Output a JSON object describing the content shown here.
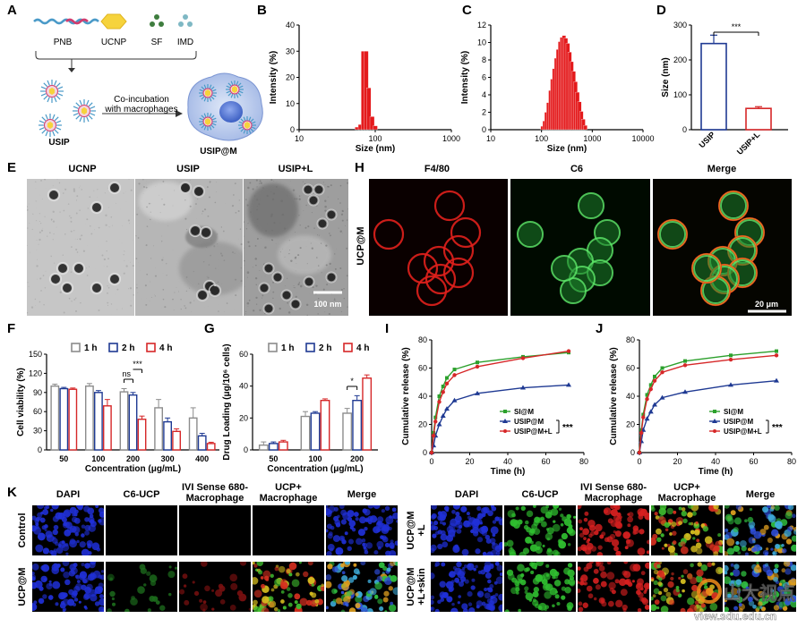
{
  "panel_letters": [
    "A",
    "B",
    "C",
    "D",
    "E",
    "F",
    "G",
    "H",
    "I",
    "J",
    "K"
  ],
  "schematic": {
    "components": [
      "PNB",
      "UCNP",
      "SF",
      "IMD"
    ],
    "usip_label": "USIP",
    "arrow_text": [
      "Co-incubation",
      "with macrophages"
    ],
    "result_label": "USIP@M",
    "colors": {
      "pnb_a": "#4a9ac8",
      "pnb_b": "#d23c6e",
      "ucnp": "#f6d33c",
      "sf": "#3e7d3e",
      "imd": "#7eb8c4",
      "cell": "#c9d7f0",
      "nucleus": "#4a6fcf"
    }
  },
  "tem": {
    "labels": [
      "UCNP",
      "USIP",
      "USIP+L"
    ],
    "scale_bar": "100 nm"
  },
  "confocal": {
    "row_label": "UCP@M",
    "channels": [
      "F4/80",
      "C6",
      "Merge"
    ],
    "scale_bar": "20 μm"
  },
  "panel_K": {
    "left_headers": [
      "DAPI",
      "C6-UCP",
      "IVI Sense 680-\nMacrophage",
      "UCP+\nMacrophage",
      "Merge"
    ],
    "left_rows": [
      "Control",
      "UCP@M"
    ],
    "right_headers": [
      "DAPI",
      "C6-UCP",
      "IVI Sense 680-\nMacrophage",
      "UCP+\nMacrophage",
      "Merge"
    ],
    "right_rows": [
      "UCP@M\n+L",
      "UCP@M\n+L+skin"
    ]
  },
  "watermark": {
    "brand": "山大视点",
    "url": "view.sdu.edu.cn"
  },
  "chart_data": [
    {
      "id": "B",
      "type": "bar",
      "xlabel": "Size (nm)",
      "ylabel": "Intensity (%)",
      "xscale": "log",
      "xlim": [
        10,
        1000
      ],
      "ylim": [
        0,
        40
      ],
      "xticks": [
        "10",
        "100",
        "1000"
      ],
      "yticks": [
        "0",
        "10",
        "20",
        "30",
        "40"
      ],
      "color": "#e41a1c",
      "x": [
        58,
        64,
        70,
        76,
        82,
        91,
        100
      ],
      "values": [
        1,
        2,
        30,
        30,
        16,
        5,
        1.5
      ]
    },
    {
      "id": "C",
      "type": "bar",
      "xlabel": "Size (nm)",
      "ylabel": "Intensity (%)",
      "xscale": "log",
      "xlim": [
        10,
        10000
      ],
      "ylim": [
        0,
        12
      ],
      "xticks": [
        "10",
        "100",
        "1000",
        "10000"
      ],
      "yticks": [
        "0",
        "2",
        "4",
        "6",
        "8",
        "10",
        "12"
      ],
      "color": "#e41a1c",
      "x": [
        105,
        115,
        125,
        137,
        150,
        163,
        178,
        195,
        212,
        232,
        253,
        277,
        302,
        330,
        360,
        393,
        430,
        470,
        513,
        560,
        612,
        668,
        730
      ],
      "values": [
        0.4,
        1.0,
        2.0,
        3.1,
        4.5,
        5.8,
        7.0,
        8.2,
        9.2,
        10.1,
        10.6,
        10.8,
        10.5,
        9.9,
        8.9,
        7.8,
        6.7,
        5.5,
        4.3,
        3.2,
        2.1,
        1.2,
        0.5
      ]
    },
    {
      "id": "D",
      "type": "bar",
      "xlabel": "",
      "ylabel": "Size (nm)",
      "ylim": [
        0,
        300
      ],
      "yticks": [
        "0",
        "100",
        "200",
        "300"
      ],
      "categories": [
        "USIP",
        "USIP+L"
      ],
      "values": [
        247,
        61
      ],
      "errors": [
        24,
        5
      ],
      "colors": [
        "#1f3a93",
        "#d62728"
      ],
      "significance": "***"
    },
    {
      "id": "F",
      "type": "bar",
      "xlabel": "Concentration (μg/mL)",
      "ylabel": "Cell viability (%)",
      "ylim": [
        0,
        150
      ],
      "yticks": [
        "0",
        "30",
        "60",
        "90",
        "120",
        "150"
      ],
      "categories": [
        "50",
        "100",
        "200",
        "300",
        "400"
      ],
      "series": [
        {
          "name": "1 h",
          "color": "#8c8c8c",
          "values": [
            100,
            100,
            91,
            66,
            50
          ],
          "errors": [
            3,
            4,
            5,
            13,
            16
          ]
        },
        {
          "name": "2 h",
          "color": "#1f3a93",
          "values": [
            96,
            90,
            86,
            44,
            22
          ],
          "errors": [
            2,
            3,
            4,
            6,
            4
          ]
        },
        {
          "name": "4 h",
          "color": "#d62728",
          "values": [
            95,
            69,
            48,
            29,
            10
          ],
          "errors": [
            2,
            10,
            5,
            4,
            2
          ]
        }
      ],
      "annotations": [
        "ns",
        "***"
      ]
    },
    {
      "id": "G",
      "type": "bar",
      "xlabel": "Concentration (μg/mL)",
      "ylabel": "Drug Loading (μg/10⁶ cells)",
      "ylim": [
        0,
        60
      ],
      "yticks": [
        "0",
        "20",
        "40",
        "60"
      ],
      "categories": [
        "50",
        "100",
        "200"
      ],
      "series": [
        {
          "name": "1 h",
          "color": "#8c8c8c",
          "values": [
            3,
            21,
            23
          ],
          "errors": [
            2,
            3,
            3
          ]
        },
        {
          "name": "2 h",
          "color": "#1f3a93",
          "values": [
            4,
            23,
            31
          ],
          "errors": [
            1,
            1,
            3
          ]
        },
        {
          "name": "4 h",
          "color": "#d62728",
          "values": [
            5,
            31,
            45
          ],
          "errors": [
            1,
            1,
            2
          ]
        }
      ],
      "annotations": [
        "*"
      ]
    },
    {
      "id": "I",
      "type": "line",
      "xlabel": "Time (h)",
      "ylabel": "Cumulative release (%)",
      "xlim": [
        0,
        80
      ],
      "ylim": [
        0,
        80
      ],
      "xticks": [
        "0",
        "20",
        "40",
        "60",
        "80"
      ],
      "yticks": [
        "0",
        "20",
        "40",
        "60",
        "80"
      ],
      "x": [
        0,
        1,
        2,
        4,
        6,
        8,
        12,
        24,
        48,
        72
      ],
      "series": [
        {
          "name": "SI@M",
          "color": "#2ca02c",
          "marker": "square",
          "values": [
            0,
            14,
            25,
            40,
            47,
            53,
            59,
            64,
            68,
            71
          ]
        },
        {
          "name": "USIP@M",
          "color": "#1f3a93",
          "marker": "triangle",
          "values": [
            0,
            5,
            12,
            20,
            26,
            31,
            37,
            42,
            46,
            48
          ]
        },
        {
          "name": "USIP@M+L",
          "color": "#d62728",
          "marker": "circle",
          "values": [
            0,
            12,
            22,
            36,
            43,
            49,
            55,
            61,
            67,
            72
          ]
        }
      ],
      "significance": "***"
    },
    {
      "id": "J",
      "type": "line",
      "xlabel": "Time (h)",
      "ylabel": "Cumulative release (%)",
      "xlim": [
        0,
        80
      ],
      "ylim": [
        0,
        80
      ],
      "xticks": [
        "0",
        "20",
        "40",
        "60",
        "80"
      ],
      "yticks": [
        "0",
        "20",
        "40",
        "60",
        "80"
      ],
      "x": [
        0,
        1,
        2,
        4,
        6,
        8,
        12,
        24,
        48,
        72
      ],
      "series": [
        {
          "name": "SI@M",
          "color": "#2ca02c",
          "marker": "square",
          "values": [
            0,
            16,
            27,
            41,
            48,
            54,
            60,
            65,
            69,
            72
          ]
        },
        {
          "name": "USIP@M",
          "color": "#1f3a93",
          "marker": "triangle",
          "values": [
            0,
            8,
            16,
            24,
            29,
            34,
            39,
            43,
            48,
            51
          ]
        },
        {
          "name": "USIP@M+L",
          "color": "#d62728",
          "marker": "circle",
          "values": [
            0,
            14,
            25,
            38,
            45,
            51,
            57,
            62,
            66,
            69
          ]
        }
      ],
      "significance": "***"
    }
  ]
}
